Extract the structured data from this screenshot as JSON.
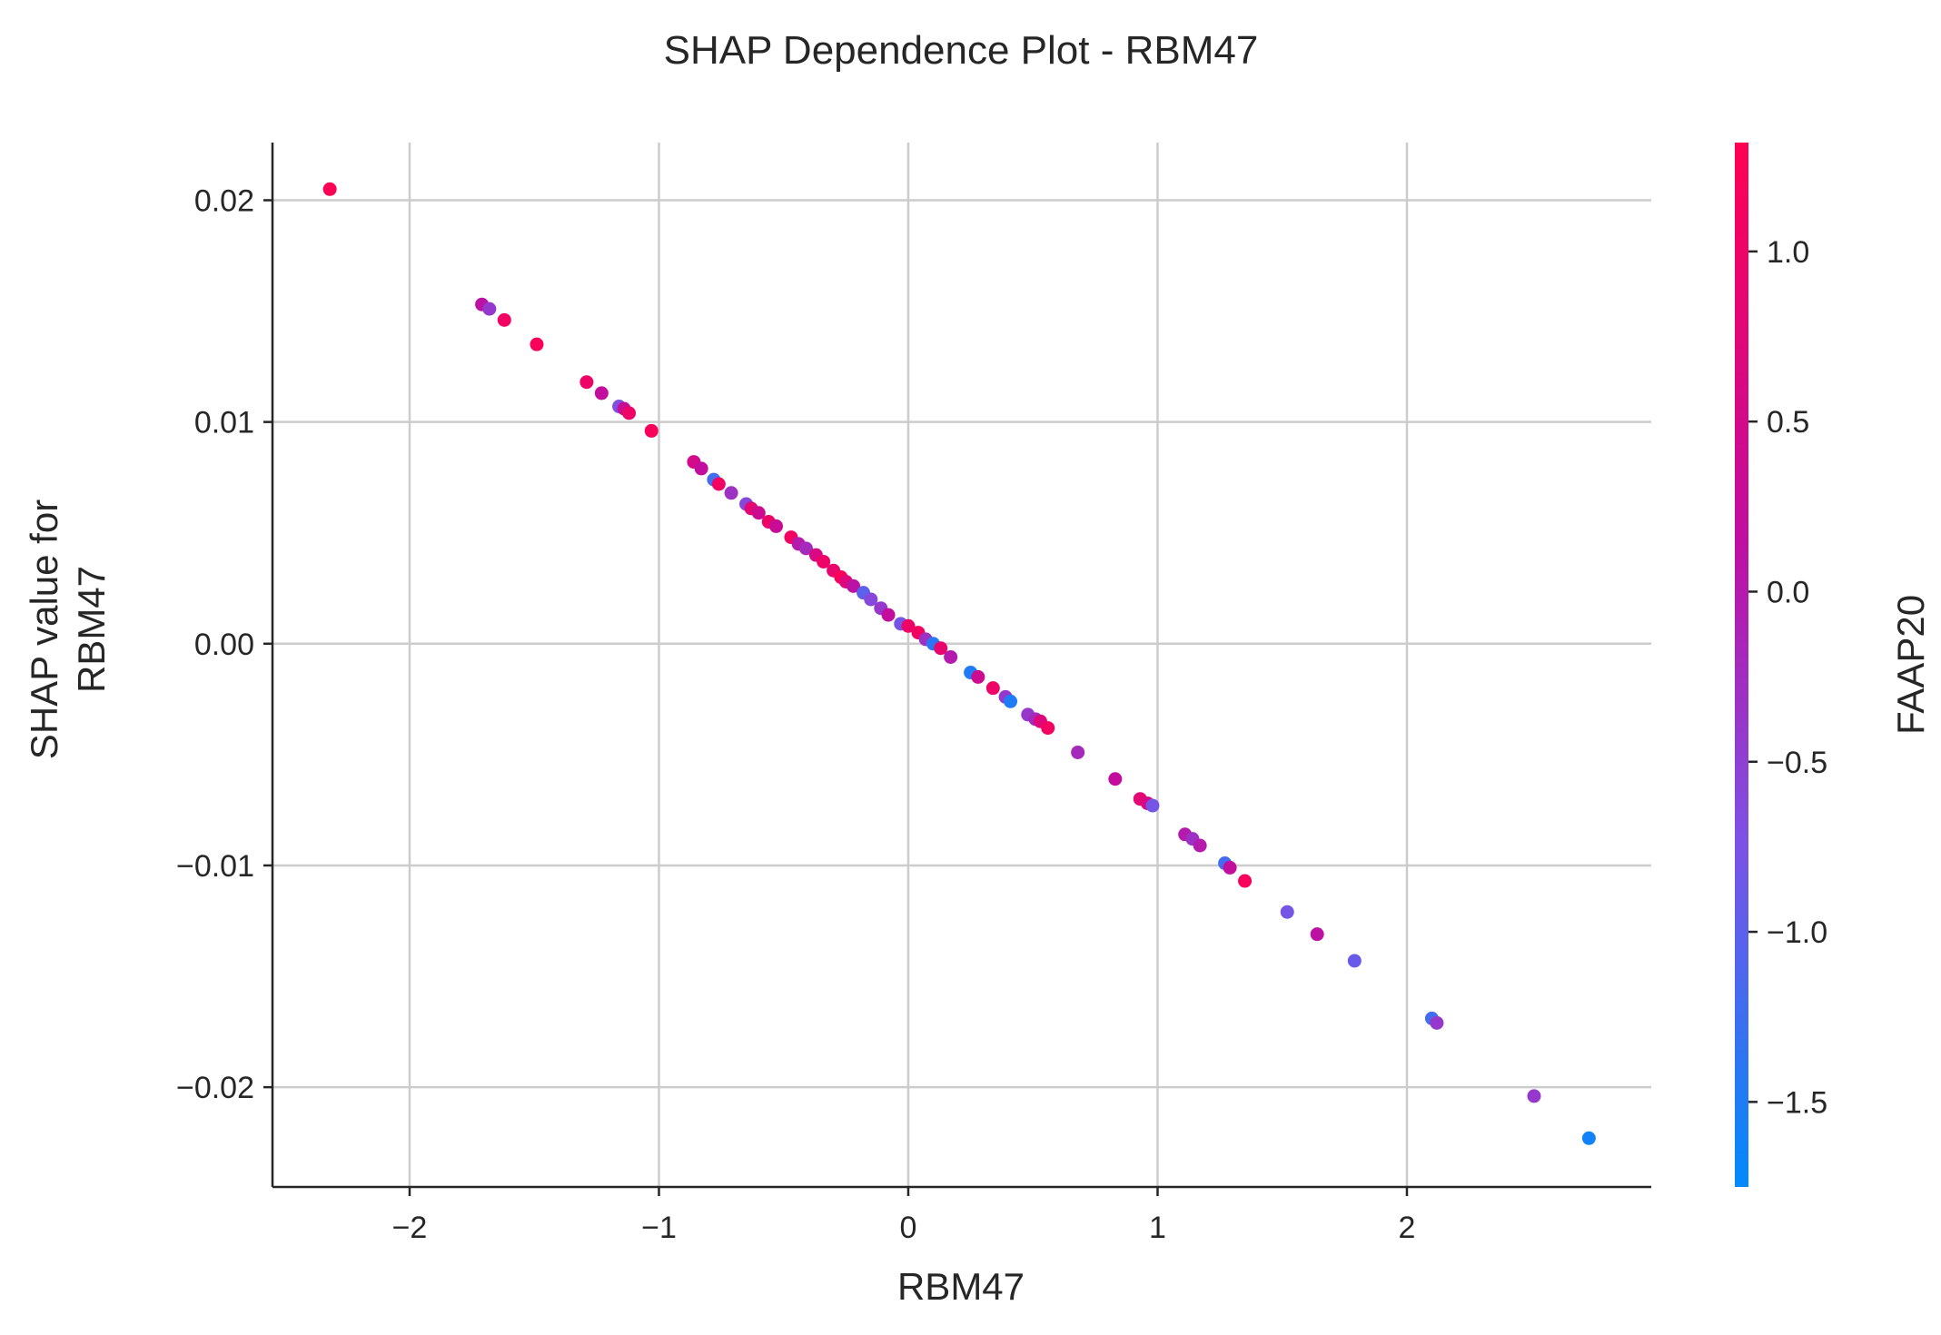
{
  "chart_data": {
    "type": "scatter",
    "title": "SHAP Dependence Plot - RBM47",
    "xlabel": "RBM47",
    "ylabel": [
      "SHAP value for",
      "RBM47"
    ],
    "xlim": [
      -2.55,
      2.98
    ],
    "ylim": [
      -0.0245,
      0.0226
    ],
    "xticks": [
      -2,
      -1,
      0,
      1,
      2
    ],
    "xtick_labels": [
      "−2",
      "−1",
      "0",
      "1",
      "2"
    ],
    "yticks": [
      0.02,
      0.01,
      0.0,
      -0.01,
      -0.02
    ],
    "ytick_labels": [
      "0.02",
      "0.01",
      "0.00",
      "−0.01",
      "−0.02"
    ],
    "grid": true,
    "colorbar": {
      "label": "FAAP20",
      "range": [
        -1.75,
        1.32
      ],
      "ticks": [
        1.0,
        0.5,
        0.0,
        -0.5,
        -1.0,
        -1.5
      ],
      "tick_labels": [
        "1.0",
        "0.5",
        "0.0",
        "−0.5",
        "−1.0",
        "−1.5"
      ],
      "colors": [
        "#008afb",
        "#7c52e5",
        "#c00ea0",
        "#ff0052"
      ]
    },
    "points": [
      {
        "x": -2.32,
        "y": 0.0205,
        "c": 1.3
      },
      {
        "x": -1.71,
        "y": 0.0153,
        "c": 0.1
      },
      {
        "x": -1.68,
        "y": 0.0151,
        "c": -0.4
      },
      {
        "x": -1.62,
        "y": 0.0146,
        "c": 1.1
      },
      {
        "x": -1.49,
        "y": 0.0135,
        "c": 1.2
      },
      {
        "x": -1.29,
        "y": 0.0118,
        "c": 1.0
      },
      {
        "x": -1.23,
        "y": 0.0113,
        "c": 0.2
      },
      {
        "x": -1.16,
        "y": 0.0107,
        "c": -0.7
      },
      {
        "x": -1.14,
        "y": 0.0106,
        "c": 0.3
      },
      {
        "x": -1.12,
        "y": 0.0104,
        "c": 1.0
      },
      {
        "x": -1.03,
        "y": 0.0096,
        "c": 1.2
      },
      {
        "x": -0.86,
        "y": 0.0082,
        "c": 0.5
      },
      {
        "x": -0.83,
        "y": 0.0079,
        "c": 0.2
      },
      {
        "x": -0.78,
        "y": 0.0074,
        "c": -1.2
      },
      {
        "x": -0.76,
        "y": 0.0072,
        "c": 1.1
      },
      {
        "x": -0.71,
        "y": 0.0068,
        "c": -0.3
      },
      {
        "x": -0.65,
        "y": 0.0063,
        "c": -0.6
      },
      {
        "x": -0.63,
        "y": 0.0061,
        "c": 0.8
      },
      {
        "x": -0.6,
        "y": 0.0059,
        "c": 0.4
      },
      {
        "x": -0.56,
        "y": 0.0055,
        "c": 1.0
      },
      {
        "x": -0.53,
        "y": 0.0053,
        "c": 0.3
      },
      {
        "x": -0.47,
        "y": 0.0048,
        "c": 1.1
      },
      {
        "x": -0.44,
        "y": 0.0045,
        "c": 0.0
      },
      {
        "x": -0.41,
        "y": 0.0043,
        "c": -0.2
      },
      {
        "x": -0.37,
        "y": 0.004,
        "c": 0.6
      },
      {
        "x": -0.34,
        "y": 0.0037,
        "c": 1.0
      },
      {
        "x": -0.3,
        "y": 0.0033,
        "c": 0.9
      },
      {
        "x": -0.27,
        "y": 0.003,
        "c": 1.2
      },
      {
        "x": -0.25,
        "y": 0.0028,
        "c": 0.7
      },
      {
        "x": -0.22,
        "y": 0.0026,
        "c": 0.1
      },
      {
        "x": -0.18,
        "y": 0.0023,
        "c": -1.0
      },
      {
        "x": -0.15,
        "y": 0.002,
        "c": -0.6
      },
      {
        "x": -0.11,
        "y": 0.0016,
        "c": -0.4
      },
      {
        "x": -0.08,
        "y": 0.0013,
        "c": 0.2
      },
      {
        "x": -0.03,
        "y": 0.0009,
        "c": -0.8
      },
      {
        "x": 0.0,
        "y": 0.0008,
        "c": 1.0
      },
      {
        "x": 0.04,
        "y": 0.0005,
        "c": 1.1
      },
      {
        "x": 0.07,
        "y": 0.0002,
        "c": -0.3
      },
      {
        "x": 0.1,
        "y": 0.0,
        "c": -1.4
      },
      {
        "x": 0.13,
        "y": -0.0002,
        "c": 0.9
      },
      {
        "x": 0.17,
        "y": -0.0006,
        "c": 0.0
      },
      {
        "x": 0.25,
        "y": -0.0013,
        "c": -1.5
      },
      {
        "x": 0.28,
        "y": -0.0015,
        "c": 0.4
      },
      {
        "x": 0.34,
        "y": -0.002,
        "c": 1.0
      },
      {
        "x": 0.39,
        "y": -0.0024,
        "c": -0.4
      },
      {
        "x": 0.41,
        "y": -0.0026,
        "c": -1.5
      },
      {
        "x": 0.48,
        "y": -0.0032,
        "c": -0.4
      },
      {
        "x": 0.51,
        "y": -0.0034,
        "c": -0.2
      },
      {
        "x": 0.53,
        "y": -0.0035,
        "c": 0.7
      },
      {
        "x": 0.56,
        "y": -0.0038,
        "c": 1.1
      },
      {
        "x": 0.68,
        "y": -0.0049,
        "c": -0.2
      },
      {
        "x": 0.83,
        "y": -0.0061,
        "c": 0.2
      },
      {
        "x": 0.93,
        "y": -0.007,
        "c": 0.8
      },
      {
        "x": 0.96,
        "y": -0.0072,
        "c": 0.6
      },
      {
        "x": 0.98,
        "y": -0.0073,
        "c": -0.8
      },
      {
        "x": 1.11,
        "y": -0.0086,
        "c": 0.0
      },
      {
        "x": 1.14,
        "y": -0.0088,
        "c": -0.3
      },
      {
        "x": 1.17,
        "y": -0.0091,
        "c": 0.0
      },
      {
        "x": 1.27,
        "y": -0.0099,
        "c": -1.2
      },
      {
        "x": 1.29,
        "y": -0.0101,
        "c": 0.2
      },
      {
        "x": 1.35,
        "y": -0.0107,
        "c": 1.2
      },
      {
        "x": 1.52,
        "y": -0.0121,
        "c": -0.8
      },
      {
        "x": 1.64,
        "y": -0.0131,
        "c": 0.1
      },
      {
        "x": 1.79,
        "y": -0.0143,
        "c": -0.9
      },
      {
        "x": 2.1,
        "y": -0.0169,
        "c": -1.2
      },
      {
        "x": 2.12,
        "y": -0.0171,
        "c": -0.4
      },
      {
        "x": 2.51,
        "y": -0.0204,
        "c": -0.4
      },
      {
        "x": 2.73,
        "y": -0.0223,
        "c": -1.6
      }
    ]
  }
}
